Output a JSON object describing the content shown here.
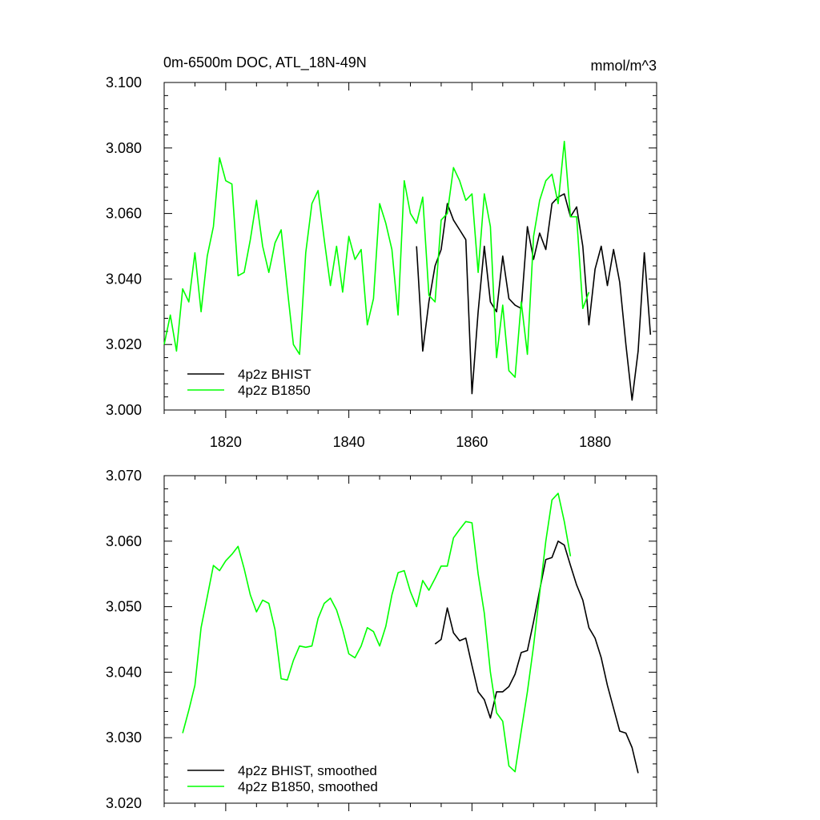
{
  "header": {
    "title": "0m-6500m DOC, ATL_18N-49N",
    "units": "mmol/m^3"
  },
  "colors": {
    "bhist": "#000000",
    "b1850": "#00ff00"
  },
  "chart_data": [
    {
      "type": "line",
      "title": "0m-6500m DOC, ATL_18N-49N",
      "ylabel": "mmol/m^3",
      "xlim": [
        1810,
        1890
      ],
      "ylim": [
        3.0,
        3.1
      ],
      "x_ticks": [
        1820,
        1840,
        1860,
        1880
      ],
      "x_tick_labels": [
        "1820",
        "1840",
        "1860",
        "1880"
      ],
      "y_ticks": [
        3.0,
        3.02,
        3.04,
        3.06,
        3.08,
        3.1
      ],
      "y_tick_labels": [
        "3.000",
        "3.020",
        "3.040",
        "3.060",
        "3.080",
        "3.100"
      ],
      "legend_position": "bottom-left",
      "series": [
        {
          "name": "4p2z BHIST",
          "color": "#000000",
          "x": [
            1851,
            1852,
            1853,
            1854,
            1855,
            1856,
            1857,
            1858,
            1859,
            1860,
            1861,
            1862,
            1863,
            1864,
            1865,
            1866,
            1867,
            1868,
            1869,
            1870,
            1871,
            1872,
            1873,
            1874,
            1875,
            1876,
            1877,
            1878,
            1879,
            1880,
            1881,
            1882,
            1883,
            1884,
            1885,
            1886,
            1887,
            1888,
            1889
          ],
          "y": [
            3.05,
            3.018,
            3.033,
            3.044,
            3.049,
            3.063,
            3.058,
            3.055,
            3.052,
            3.005,
            3.03,
            3.05,
            3.033,
            3.03,
            3.047,
            3.034,
            3.032,
            3.031,
            3.056,
            3.046,
            3.054,
            3.049,
            3.063,
            3.065,
            3.066,
            3.059,
            3.062,
            3.05,
            3.026,
            3.043,
            3.05,
            3.038,
            3.049,
            3.039,
            3.02,
            3.003,
            3.018,
            3.048,
            3.023
          ]
        },
        {
          "name": "4p2z B1850",
          "color": "#00ff00",
          "x": [
            1810,
            1811,
            1812,
            1813,
            1814,
            1815,
            1816,
            1817,
            1818,
            1819,
            1820,
            1821,
            1822,
            1823,
            1824,
            1825,
            1826,
            1827,
            1828,
            1829,
            1830,
            1831,
            1832,
            1833,
            1834,
            1835,
            1836,
            1837,
            1838,
            1839,
            1840,
            1841,
            1842,
            1843,
            1844,
            1845,
            1846,
            1847,
            1848,
            1849,
            1850,
            1851,
            1852,
            1853,
            1854,
            1855,
            1856,
            1857,
            1858,
            1859,
            1860,
            1861,
            1862,
            1863,
            1864,
            1865,
            1866,
            1867,
            1868,
            1869,
            1870,
            1871,
            1872,
            1873,
            1874,
            1875,
            1876,
            1877,
            1878,
            1879
          ],
          "y": [
            3.02,
            3.029,
            3.018,
            3.037,
            3.033,
            3.048,
            3.03,
            3.047,
            3.056,
            3.077,
            3.07,
            3.069,
            3.041,
            3.042,
            3.052,
            3.064,
            3.05,
            3.042,
            3.051,
            3.055,
            3.037,
            3.02,
            3.017,
            3.048,
            3.063,
            3.067,
            3.052,
            3.038,
            3.05,
            3.036,
            3.053,
            3.046,
            3.049,
            3.026,
            3.034,
            3.063,
            3.057,
            3.049,
            3.029,
            3.07,
            3.06,
            3.057,
            3.065,
            3.035,
            3.033,
            3.058,
            3.06,
            3.074,
            3.07,
            3.064,
            3.066,
            3.042,
            3.066,
            3.056,
            3.016,
            3.032,
            3.012,
            3.01,
            3.033,
            3.017,
            3.053,
            3.064,
            3.07,
            3.072,
            3.063,
            3.082,
            3.059,
            3.059,
            3.031,
            3.036
          ]
        }
      ]
    },
    {
      "type": "line",
      "xlim": [
        1810,
        1890
      ],
      "ylim": [
        3.02,
        3.07
      ],
      "x_ticks": [
        1820,
        1840,
        1860,
        1880
      ],
      "x_tick_labels": [],
      "y_ticks": [
        3.02,
        3.03,
        3.04,
        3.05,
        3.06,
        3.07
      ],
      "y_tick_labels": [
        "3.020",
        "3.030",
        "3.040",
        "3.050",
        "3.060",
        "3.070"
      ],
      "legend_position": "bottom-left",
      "series": [
        {
          "name": "4p2z BHIST, smoothed",
          "color": "#000000",
          "x": [
            1854,
            1855,
            1856,
            1857,
            1858,
            1859,
            1860,
            1861,
            1862,
            1863,
            1864,
            1865,
            1866,
            1867,
            1868,
            1869,
            1870,
            1871,
            1872,
            1873,
            1874,
            1875,
            1876,
            1877,
            1878,
            1879,
            1880,
            1881,
            1882,
            1883,
            1884,
            1885,
            1886,
            1887
          ],
          "y": [
            3.0443,
            3.045,
            3.0498,
            3.046,
            3.0448,
            3.0452,
            3.041,
            3.037,
            3.0358,
            3.033,
            3.037,
            3.037,
            3.0378,
            3.0397,
            3.043,
            3.0433,
            3.0477,
            3.0525,
            3.0572,
            3.0575,
            3.06,
            3.0594,
            3.0563,
            3.0533,
            3.051,
            3.0468,
            3.0452,
            3.0422,
            3.038,
            3.0345,
            3.031,
            3.0307,
            3.0285,
            3.0246
          ]
        },
        {
          "name": "4p2z B1850, smoothed",
          "color": "#00ff00",
          "x": [
            1813,
            1814,
            1815,
            1816,
            1817,
            1818,
            1819,
            1820,
            1821,
            1822,
            1823,
            1824,
            1825,
            1826,
            1827,
            1828,
            1829,
            1830,
            1831,
            1832,
            1833,
            1834,
            1835,
            1836,
            1837,
            1838,
            1839,
            1840,
            1841,
            1842,
            1843,
            1844,
            1845,
            1846,
            1847,
            1848,
            1849,
            1850,
            1851,
            1852,
            1853,
            1854,
            1855,
            1856,
            1857,
            1858,
            1859,
            1860,
            1861,
            1862,
            1863,
            1864,
            1865,
            1866,
            1867,
            1868,
            1869,
            1870,
            1871,
            1872,
            1873,
            1874,
            1875,
            1876
          ],
          "y": [
            3.0307,
            3.0342,
            3.038,
            3.0468,
            3.0515,
            3.0563,
            3.0555,
            3.057,
            3.058,
            3.0592,
            3.0558,
            3.0518,
            3.0492,
            3.051,
            3.0505,
            3.0465,
            3.039,
            3.0388,
            3.0418,
            3.044,
            3.0438,
            3.044,
            3.0482,
            3.0505,
            3.0513,
            3.0495,
            3.0465,
            3.0428,
            3.0422,
            3.044,
            3.0468,
            3.0462,
            3.044,
            3.047,
            3.0518,
            3.0552,
            3.0555,
            3.0523,
            3.05,
            3.054,
            3.0525,
            3.0543,
            3.0562,
            3.0562,
            3.0605,
            3.0618,
            3.063,
            3.0628,
            3.055,
            3.049,
            3.04,
            3.0338,
            3.0325,
            3.0257,
            3.0248,
            3.031,
            3.037,
            3.044,
            3.052,
            3.06,
            3.0663,
            3.0673,
            3.063,
            3.0577
          ]
        }
      ]
    }
  ]
}
